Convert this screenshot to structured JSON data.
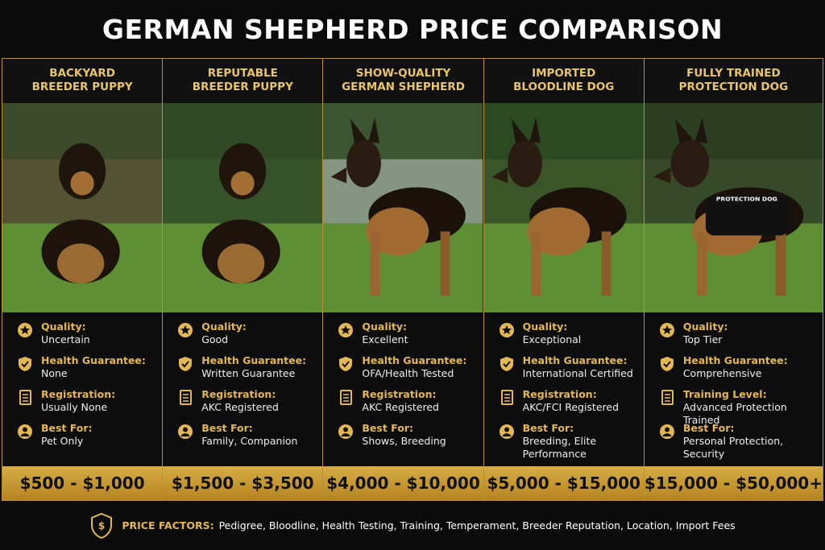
{
  "title": "GERMAN SHEPHERD PRICE COMPARISON",
  "columns": [
    {
      "header": "BACKYARD BREEDER PUPPY",
      "items": [
        {
          "label": "Quality:",
          "value": "Uncertain"
        },
        {
          "label": "Health Guarantee:",
          "value": "None"
        },
        {
          "label": "Registration:",
          "value": "Usually None"
        },
        {
          "label": "Best For:",
          "value": "Pet Only"
        }
      ],
      "price": "$500 - $1,000"
    },
    {
      "header": "REPUTABLE BREEDER PUPPY",
      "items": [
        {
          "label": "Quality:",
          "value": "Good"
        },
        {
          "label": "Health Guarantee:",
          "value": "Written Guarantee"
        },
        {
          "label": "Registration:",
          "value": "AKC Registered"
        },
        {
          "label": "Best For:",
          "value": "Family, Companion"
        }
      ],
      "price": "$1,500 - $3,500"
    },
    {
      "header": "SHOW-QUALITY GERMAN SHEPHERD",
      "items": [
        {
          "label": "Quality:",
          "value": "Excellent"
        },
        {
          "label": "Health Guarantee:",
          "value": "OFA/Health Tested"
        },
        {
          "label": "Registration:",
          "value": "AKC Registered"
        },
        {
          "label": "Best For:",
          "value": "Shows, Breeding"
        }
      ],
      "price": "$4,000 - $10,000"
    },
    {
      "header": "IMPORTED BLOODLINE DOG",
      "items": [
        {
          "label": "Quality:",
          "value": "Exceptional"
        },
        {
          "label": "Health Guarantee:",
          "value": "International Certified"
        },
        {
          "label": "Registration:",
          "value": "AKC/FCI Registered"
        },
        {
          "label": "Best For:",
          "value": "Breeding, Elite Performance"
        }
      ],
      "price": "$5,000 - $15,000"
    },
    {
      "header": "FULLY TRAINED PROTECTION DOG",
      "items": [
        {
          "label": "Quality:",
          "value": "Top Tier"
        },
        {
          "label": "Health Guarantee:",
          "value": "Comprehensive"
        },
        {
          "label": "Training Level:",
          "value": "Advanced Protection Trained"
        },
        {
          "label": "Best For:",
          "value": "Personal Protection, Security"
        }
      ],
      "price": "$15,000 - $50,000+"
    }
  ],
  "vest_label": "PROTECTION DOG",
  "footer": {
    "label": "PRICE FACTORS:",
    "text": "Pedigree, Bloodline, Health Testing, Training, Temperament, Breeder Reputation, Location, Import Fees"
  }
}
